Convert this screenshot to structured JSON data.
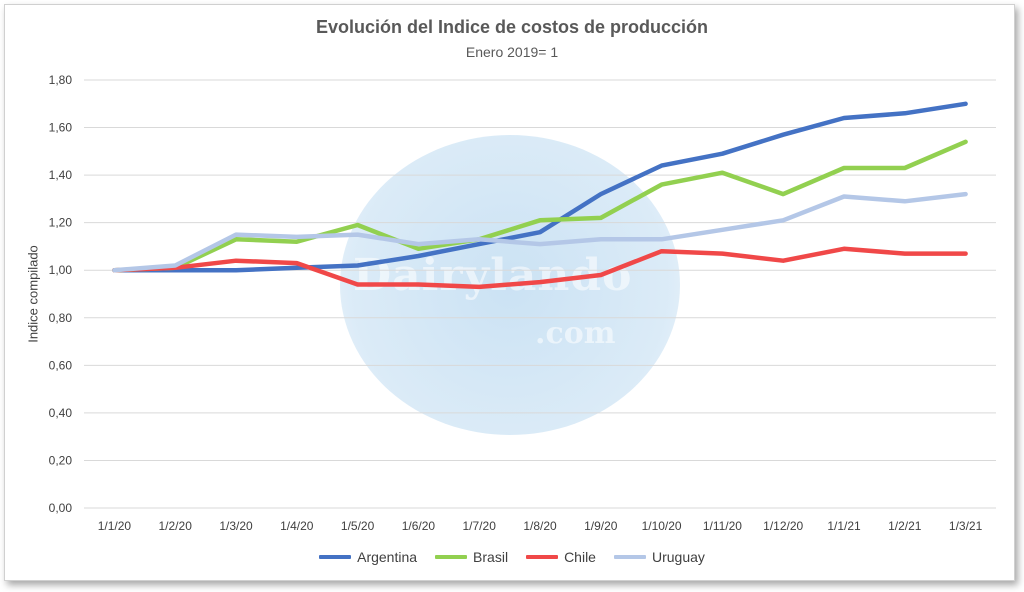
{
  "chart_data": {
    "type": "line",
    "title": "Evolución del Indice de costos de producción",
    "subtitle": "Enero 2019= 1",
    "ylabel": "Indice compilado",
    "xlabel": "",
    "ylim": [
      0,
      1.8
    ],
    "yticks": [
      "0,00",
      "0,20",
      "0,40",
      "0,60",
      "0,80",
      "1,00",
      "1,20",
      "1,40",
      "1,60",
      "1,80"
    ],
    "ytick_values": [
      0,
      0.2,
      0.4,
      0.6,
      0.8,
      1.0,
      1.2,
      1.4,
      1.6,
      1.8
    ],
    "categories": [
      "1/1/20",
      "1/2/20",
      "1/3/20",
      "1/4/20",
      "1/5/20",
      "1/6/20",
      "1/7/20",
      "1/8/20",
      "1/9/20",
      "1/10/20",
      "1/11/20",
      "1/12/20",
      "1/1/21",
      "1/2/21",
      "1/3/21"
    ],
    "grid": true,
    "legend_position": "bottom",
    "series": [
      {
        "name": "Argentina",
        "color": "#4472C4",
        "values": [
          1.0,
          1.0,
          1.0,
          1.01,
          1.02,
          1.06,
          1.11,
          1.16,
          1.32,
          1.44,
          1.49,
          1.57,
          1.64,
          1.66,
          1.7
        ]
      },
      {
        "name": "Brasil",
        "color": "#92D050",
        "values": [
          1.0,
          1.01,
          1.13,
          1.12,
          1.19,
          1.09,
          1.13,
          1.21,
          1.22,
          1.36,
          1.41,
          1.32,
          1.43,
          1.43,
          1.54
        ]
      },
      {
        "name": "Chile",
        "color": "#F04848",
        "values": [
          1.0,
          1.01,
          1.04,
          1.03,
          0.94,
          0.94,
          0.93,
          0.95,
          0.98,
          1.08,
          1.07,
          1.04,
          1.09,
          1.07,
          1.07
        ]
      },
      {
        "name": "Uruguay",
        "color": "#B4C7E7",
        "values": [
          1.0,
          1.02,
          1.15,
          1.14,
          1.15,
          1.11,
          1.13,
          1.11,
          1.13,
          1.13,
          1.17,
          1.21,
          1.31,
          1.29,
          1.32
        ]
      }
    ]
  },
  "watermark": {
    "text": "Dairylando",
    "suffix": ".com"
  }
}
